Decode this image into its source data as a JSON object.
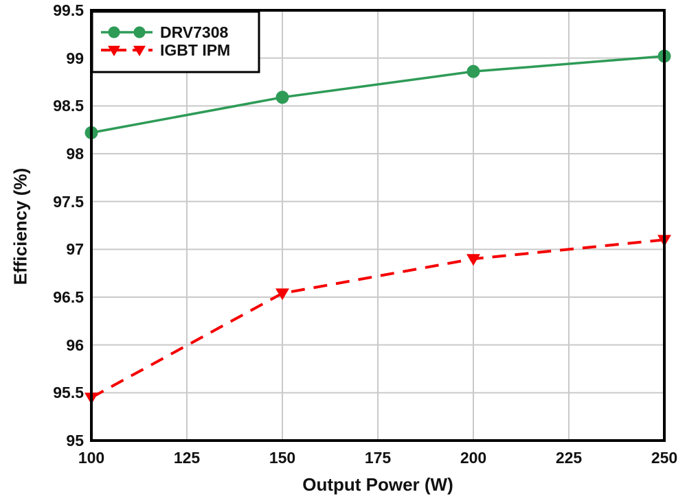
{
  "chart_data": {
    "type": "line",
    "title": "",
    "xlabel": "Output Power (W)",
    "ylabel": "Efficiency (%)",
    "xlim": [
      100,
      250
    ],
    "ylim": [
      95,
      99.5
    ],
    "xticks": [
      100,
      125,
      150,
      175,
      200,
      225,
      250
    ],
    "yticks": [
      95,
      95.5,
      96,
      96.5,
      97,
      97.5,
      98,
      98.5,
      99,
      99.5
    ],
    "grid": true,
    "legend_position": "top-left",
    "x": [
      100,
      150,
      200,
      250
    ],
    "series": [
      {
        "name": "DRV7308",
        "color": "#2e9b57",
        "line_style": "solid",
        "marker": "circle",
        "values": [
          98.22,
          98.59,
          98.86,
          99.02
        ]
      },
      {
        "name": "IGBT IPM",
        "color": "#f40000",
        "line_style": "dashed",
        "marker": "triangle-down",
        "values": [
          95.45,
          96.54,
          96.9,
          97.1
        ]
      }
    ]
  },
  "colors": {
    "background": "#ffffff",
    "grid": "#c9c9c9",
    "spine": "#000000",
    "text": "#111111",
    "legend_border": "#000000",
    "legend_background": "#ffffff"
  }
}
